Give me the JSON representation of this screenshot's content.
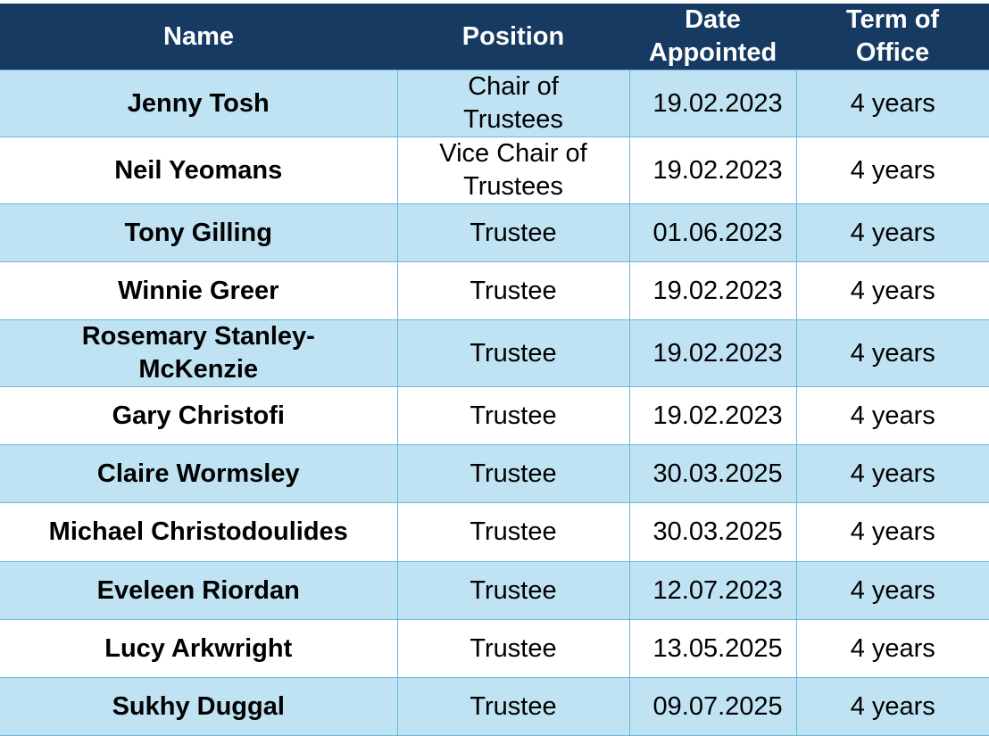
{
  "table": {
    "headers": [
      "Name",
      "Position",
      "Date Appointed",
      "Term of Office"
    ],
    "rows": [
      [
        "Jenny Tosh",
        "Chair of Trustees",
        "19.02.2023",
        "4 years"
      ],
      [
        "Neil Yeomans",
        "Vice Chair of Trustees",
        "19.02.2023",
        "4 years"
      ],
      [
        "Tony Gilling",
        "Trustee",
        "01.06.2023",
        "4 years"
      ],
      [
        "Winnie Greer",
        "Trustee",
        "19.02.2023",
        "4 years"
      ],
      [
        "Rosemary Stanley-McKenzie",
        "Trustee",
        "19.02.2023",
        "4 years"
      ],
      [
        "Gary Christofi",
        "Trustee",
        "19.02.2023",
        "4 years"
      ],
      [
        "Claire Wormsley",
        "Trustee",
        "30.03.2025",
        "4 years"
      ],
      [
        "Michael Christodoulides",
        "Trustee",
        "30.03.2025",
        "4 years"
      ],
      [
        "Eveleen Riordan",
        "Trustee",
        "12.07.2023",
        "4 years"
      ],
      [
        "Lucy Arkwright",
        "Trustee",
        "13.05.2025",
        "4 years"
      ],
      [
        "Sukhy Duggal",
        "Trustee",
        "09.07.2025",
        "4 years"
      ]
    ]
  }
}
